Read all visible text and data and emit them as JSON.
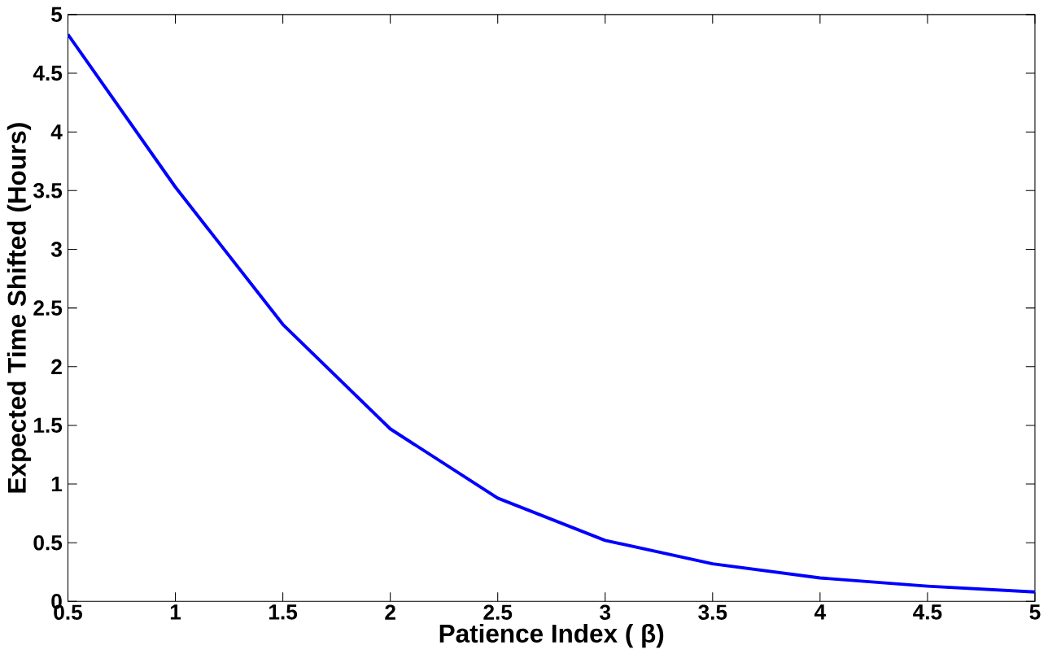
{
  "chart_data": {
    "type": "line",
    "xlabel": "Patience Index ( β)",
    "ylabel": "Expected Time Shifted (Hours)",
    "x": [
      0.5,
      1,
      1.5,
      2,
      2.5,
      3,
      3.5,
      4,
      4.5,
      5
    ],
    "series": [
      {
        "color": "#0000ff",
        "values": [
          4.83,
          3.53,
          2.36,
          1.47,
          0.88,
          0.52,
          0.32,
          0.2,
          0.13,
          0.08
        ]
      }
    ],
    "xlim": [
      0.5,
      5
    ],
    "ylim": [
      0,
      5
    ],
    "xticks": [
      0.5,
      1,
      1.5,
      2,
      2.5,
      3,
      3.5,
      4,
      4.5,
      5
    ],
    "yticks": [
      0,
      0.5,
      1,
      1.5,
      2,
      2.5,
      3,
      3.5,
      4,
      4.5,
      5
    ],
    "grid": false,
    "marker": "none",
    "line_style": "solid"
  }
}
